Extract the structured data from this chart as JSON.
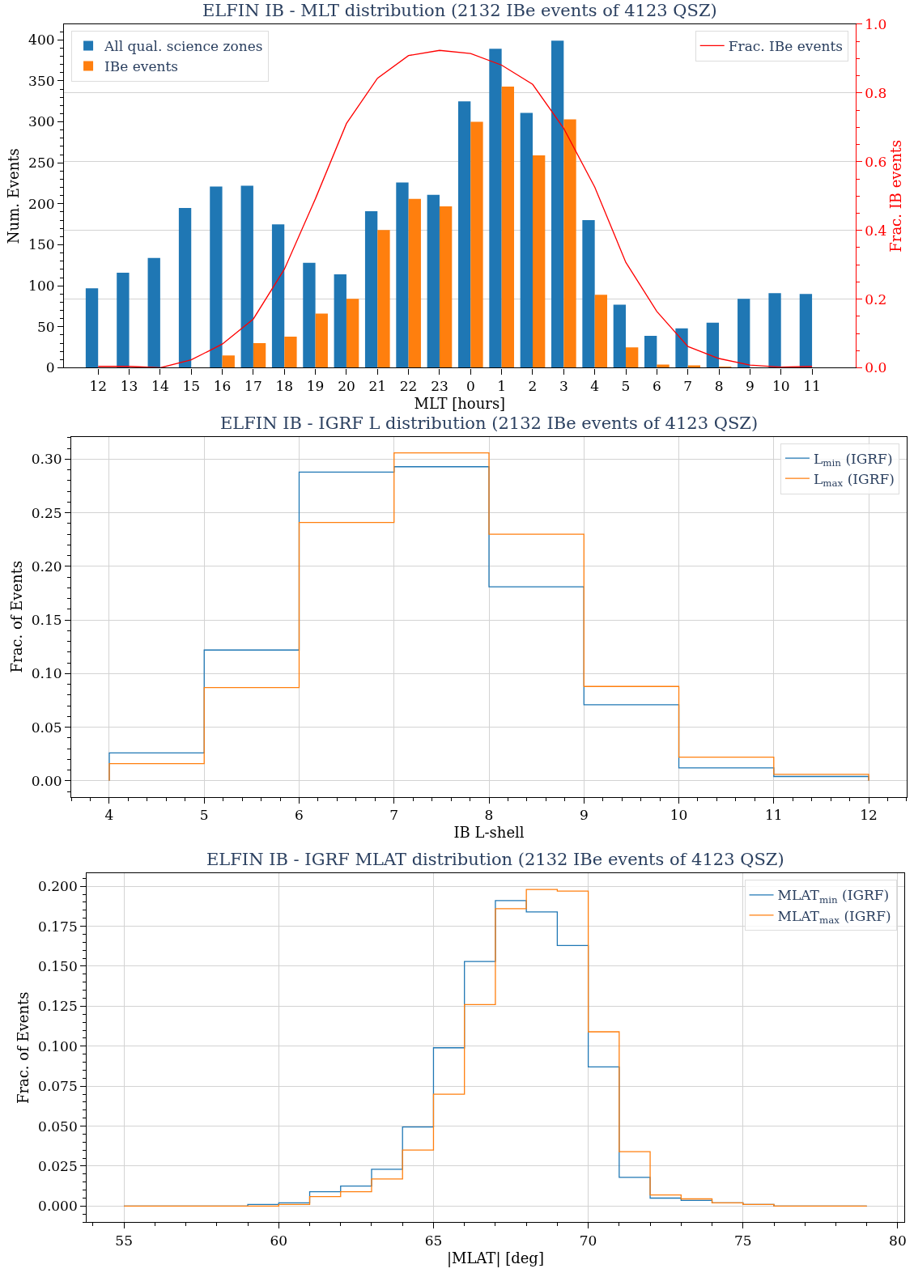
{
  "chart_data": [
    {
      "type": "bar",
      "title": "ELFIN IB - MLT distribution (2132 IBe events of 4123 QSZ)",
      "xlabel": "MLT [hours]",
      "ylabel": "Num. Events",
      "y2label": "Frac. IB events",
      "categories": [
        "12",
        "13",
        "14",
        "15",
        "16",
        "17",
        "18",
        "19",
        "20",
        "21",
        "22",
        "23",
        "0",
        "1",
        "2",
        "3",
        "4",
        "5",
        "6",
        "7",
        "8",
        "9",
        "10",
        "11"
      ],
      "series": [
        {
          "name": "All qual. science zones",
          "color": "#1f77b4",
          "values": [
            97,
            116,
            134,
            195,
            221,
            222,
            175,
            128,
            114,
            191,
            226,
            211,
            325,
            389,
            311,
            399,
            180,
            77,
            39,
            48,
            55,
            84,
            91,
            90
          ]
        },
        {
          "name": "IBe events",
          "color": "#ff7f0e",
          "values": [
            0,
            0,
            0,
            0,
            15,
            30,
            38,
            66,
            84,
            168,
            206,
            197,
            300,
            343,
            259,
            303,
            89,
            25,
            4,
            3,
            1,
            0,
            0,
            0
          ]
        },
        {
          "name": "Frac. IBe events",
          "color": "#ff0000",
          "type": "line",
          "axis": "y2",
          "values": [
            0.004,
            0.004,
            0.0,
            0.023,
            0.069,
            0.142,
            0.287,
            0.492,
            0.711,
            0.843,
            0.909,
            0.924,
            0.915,
            0.881,
            0.825,
            0.697,
            0.526,
            0.307,
            0.164,
            0.062,
            0.027,
            0.008,
            0.002,
            0.004
          ]
        }
      ],
      "ylim": [
        0,
        419
      ],
      "yticks": [
        0,
        50,
        100,
        150,
        200,
        250,
        300,
        350,
        400
      ],
      "y2lim": [
        0,
        1.0
      ],
      "y2ticks": [
        {
          "value": 0,
          "label": "0.0"
        },
        {
          "value": 0.2,
          "label": "0.2"
        },
        {
          "value": 0.4,
          "label": "0.4"
        },
        {
          "value": 0.6,
          "label": "0.6"
        },
        {
          "value": 0.8,
          "label": "0.8"
        },
        {
          "value": 1.0,
          "label": "1.0"
        }
      ],
      "grid": "y",
      "legend": "top left",
      "marker": "none",
      "line_style": "solid"
    },
    {
      "type": "histogram",
      "title": "ELFIN IB - IGRF L distribution (2132 IBe events of 4123 QSZ)",
      "xlabel": "IB L-shell",
      "ylabel": "Frac. of Events",
      "bins": [
        4,
        5,
        6,
        7,
        8,
        9,
        10,
        11,
        12
      ],
      "series": [
        {
          "name": "L$_{min}$ (IGRF)",
          "color": "#1f77b4",
          "values": [
            0.026,
            0.122,
            0.288,
            0.293,
            0.181,
            0.071,
            0.012,
            0.004
          ]
        },
        {
          "name": "L$_{max}$ (IGRF)",
          "color": "#ff7f0e",
          "values": [
            0.016,
            0.087,
            0.241,
            0.306,
            0.23,
            0.088,
            0.022,
            0.006
          ]
        }
      ],
      "xlim": [
        3.6,
        12.4
      ],
      "xticks": [
        4,
        5,
        6,
        7,
        8,
        9,
        10,
        11,
        12
      ],
      "ylim": [
        -0.015,
        0.321
      ],
      "yticks": [
        {
          "value": 0,
          "label": "0.00"
        },
        {
          "value": 0.05,
          "label": "0.05"
        },
        {
          "value": 0.1,
          "label": "0.10"
        },
        {
          "value": 0.15,
          "label": "0.15"
        },
        {
          "value": 0.2,
          "label": "0.20"
        },
        {
          "value": 0.25,
          "label": "0.25"
        },
        {
          "value": 0.3,
          "label": "0.30"
        }
      ],
      "grid": true,
      "legend": "top right",
      "line_style": "solid"
    },
    {
      "type": "histogram",
      "title": "ELFIN IB - IGRF MLAT distribution (2132 IBe events of 4123 QSZ)",
      "xlabel": "|MLAT| [deg]",
      "ylabel": "Frac. of Events",
      "bins": [
        55,
        56,
        57,
        58,
        59,
        60,
        61,
        62,
        63,
        64,
        65,
        66,
        67,
        68,
        69,
        70,
        71,
        72,
        73,
        74,
        75,
        76,
        77,
        78,
        79
      ],
      "series": [
        {
          "name": "MLAT$_{min}$ (IGRF)",
          "color": "#1f77b4",
          "values": [
            0,
            0,
            0,
            0,
            0.001,
            0.002,
            0.009,
            0.0125,
            0.023,
            0.0495,
            0.099,
            0.153,
            0.191,
            0.184,
            0.163,
            0.087,
            0.018,
            0.005,
            0.0035,
            0.002,
            0.001,
            0,
            0,
            0
          ]
        },
        {
          "name": "MLAT$_{max}$ (IGRF)",
          "color": "#ff7f0e",
          "values": [
            0,
            0,
            0,
            0,
            0,
            0.001,
            0.006,
            0.009,
            0.017,
            0.035,
            0.07,
            0.126,
            0.186,
            0.198,
            0.197,
            0.109,
            0.034,
            0.007,
            0.0045,
            0.002,
            0.001,
            0,
            0,
            0
          ]
        }
      ],
      "xlim": [
        53.8,
        80.2
      ],
      "xticks": [
        55,
        60,
        65,
        70,
        75,
        80
      ],
      "ylim": [
        -0.01,
        0.208
      ],
      "yticks": [
        {
          "value": 0,
          "label": "0.000"
        },
        {
          "value": 0.025,
          "label": "0.025"
        },
        {
          "value": 0.05,
          "label": "0.050"
        },
        {
          "value": 0.075,
          "label": "0.075"
        },
        {
          "value": 0.1,
          "label": "0.100"
        },
        {
          "value": 0.125,
          "label": "0.125"
        },
        {
          "value": 0.15,
          "label": "0.150"
        },
        {
          "value": 0.175,
          "label": "0.175"
        },
        {
          "value": 0.2,
          "label": "0.200"
        }
      ],
      "grid": true,
      "legend": "top right",
      "line_style": "solid"
    }
  ]
}
